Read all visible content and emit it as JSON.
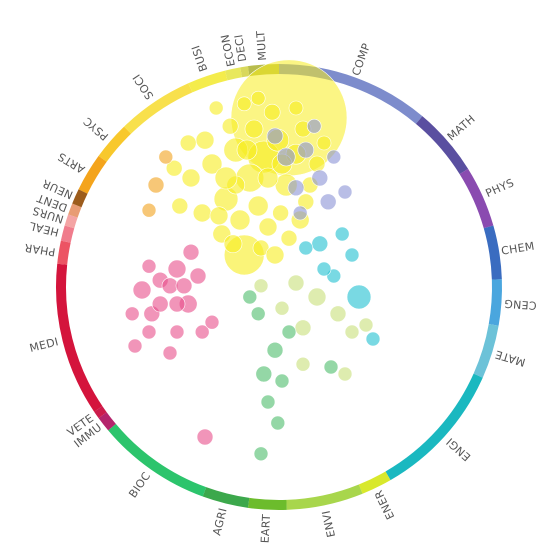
{
  "chart_data": {
    "type": "scatter",
    "title": "",
    "categories": [
      {
        "label": "COMP",
        "color": "#7d8ccc",
        "start": 0,
        "end": 40
      },
      {
        "label": "MATH",
        "color": "#5a4fa0",
        "start": 40,
        "end": 58
      },
      {
        "label": "PHYS",
        "color": "#8a4bb0",
        "start": 58,
        "end": 74
      },
      {
        "label": "CHEM",
        "color": "#3a6cc0",
        "start": 74,
        "end": 88
      },
      {
        "label": "CENG",
        "color": "#4aa6de",
        "start": 88,
        "end": 100
      },
      {
        "label": "MATE",
        "color": "#6cc2d8",
        "start": 100,
        "end": 114
      },
      {
        "label": "ENGI",
        "color": "#1ab8c0",
        "start": 114,
        "end": 150
      },
      {
        "label": "ENER",
        "color": "#d8e82c",
        "start": 150,
        "end": 158
      },
      {
        "label": "ENVI",
        "color": "#a8d64c",
        "start": 158,
        "end": 178
      },
      {
        "label": "EART",
        "color": "#6cbc2c",
        "start": 178,
        "end": 188
      },
      {
        "label": "AGRI",
        "color": "#3ca84c",
        "start": 188,
        "end": 200
      },
      {
        "label": "BIOC",
        "color": "#2cc46c",
        "start": 200,
        "end": 230
      },
      {
        "label": "IMMU",
        "color": "#b4246c",
        "start": 230,
        "end": 234
      },
      {
        "label": "VETE",
        "color": "#cc1c4c",
        "start": 234,
        "end": 236
      },
      {
        "label": "MEDI",
        "color": "#d4143c",
        "start": 236,
        "end": 276
      },
      {
        "label": "PHAR",
        "color": "#ec5464",
        "start": 276,
        "end": 282
      },
      {
        "label": "HEAL",
        "color": "#f07c8c",
        "start": 282,
        "end": 286
      },
      {
        "label": "NURS",
        "color": "#f4a4a4",
        "start": 286,
        "end": 289
      },
      {
        "label": "DENT",
        "color": "#e89c74",
        "start": 289,
        "end": 292
      },
      {
        "label": "NEUR",
        "color": "#9c5c1c",
        "start": 292,
        "end": 296
      },
      {
        "label": "ARTS",
        "color": "#f4a41c",
        "start": 296,
        "end": 306
      },
      {
        "label": "PSYC",
        "color": "#f8c82c",
        "start": 306,
        "end": 316
      },
      {
        "label": "SOCI",
        "color": "#f8e04c",
        "start": 316,
        "end": 336
      },
      {
        "label": "BUSI",
        "color": "#f4ec4c",
        "start": 336,
        "end": 346
      },
      {
        "label": "ECON",
        "color": "#e8e85c",
        "start": 346,
        "end": 350
      },
      {
        "label": "DECI",
        "color": "#d8d85c",
        "start": 350,
        "end": 352
      },
      {
        "label": "MULT",
        "color": "#b8bc4c",
        "start": 352,
        "end": 360
      }
    ],
    "point_colors": {
      "soc": "#f7ec1f",
      "pink": "#e84e8a",
      "blue": "#8a93d6",
      "cyan": "#20c0d0",
      "lgreen": "#c8e07a",
      "green": "#4cbc6a",
      "orange": "#f2a21d"
    },
    "points": [
      {
        "group": "soc",
        "x": 0.18,
        "y": 0.2,
        "r": 20
      },
      {
        "group": "soc",
        "x": 0.5,
        "y": -0.78,
        "r": 58
      },
      {
        "group": "soc",
        "x": 0.32,
        "y": -0.5,
        "r": 16
      },
      {
        "group": "soc",
        "x": 0.22,
        "y": -0.35,
        "r": 14
      },
      {
        "group": "soc",
        "x": 0.12,
        "y": -0.55,
        "r": 12
      },
      {
        "group": "soc",
        "x": 0.05,
        "y": -0.2,
        "r": 12
      },
      {
        "group": "soc",
        "x": 0.15,
        "y": -0.05,
        "r": 10
      },
      {
        "group": "soc",
        "x": 0.02,
        "y": 0.05,
        "r": 9
      },
      {
        "group": "soc",
        "x": -0.05,
        "y": -0.45,
        "r": 10
      },
      {
        "group": "soc",
        "x": 0.42,
        "y": -0.62,
        "r": 11
      },
      {
        "group": "soc",
        "x": 0.48,
        "y": -0.3,
        "r": 11
      },
      {
        "group": "soc",
        "x": 0.55,
        "y": -0.52,
        "r": 10
      },
      {
        "group": "soc",
        "x": 0.28,
        "y": -0.15,
        "r": 10
      },
      {
        "group": "soc",
        "x": 0.35,
        "y": 0.0,
        "r": 9
      },
      {
        "group": "soc",
        "x": -0.12,
        "y": -0.1,
        "r": 9
      },
      {
        "group": "soc",
        "x": -0.2,
        "y": -0.35,
        "r": 9
      },
      {
        "group": "soc",
        "x": -0.1,
        "y": -0.62,
        "r": 9
      },
      {
        "group": "soc",
        "x": 0.25,
        "y": -0.7,
        "r": 9
      },
      {
        "group": "soc",
        "x": 0.6,
        "y": -0.7,
        "r": 8
      },
      {
        "group": "soc",
        "x": 0.44,
        "y": -0.1,
        "r": 8
      },
      {
        "group": "soc",
        "x": 0.08,
        "y": -0.72,
        "r": 8
      },
      {
        "group": "soc",
        "x": -0.28,
        "y": -0.15,
        "r": 8
      },
      {
        "group": "soc",
        "x": -0.32,
        "y": -0.42,
        "r": 8
      },
      {
        "group": "soc",
        "x": 0.38,
        "y": -0.82,
        "r": 8
      },
      {
        "group": "soc",
        "x": 0.18,
        "y": -0.88,
        "r": 7
      },
      {
        "group": "soc",
        "x": 0.62,
        "y": -0.18,
        "r": 8
      },
      {
        "group": "soc",
        "x": 0.5,
        "y": 0.08,
        "r": 8
      },
      {
        "group": "soc",
        "x": 0.3,
        "y": 0.15,
        "r": 8
      },
      {
        "group": "soc",
        "x": 0.4,
        "y": 0.2,
        "r": 9
      },
      {
        "group": "soc",
        "x": -0.02,
        "y": -0.85,
        "r": 7
      },
      {
        "group": "soc",
        "x": 0.7,
        "y": -0.45,
        "r": 8
      },
      {
        "group": "soc",
        "x": 0.12,
        "y": -0.3,
        "r": 9
      },
      {
        "group": "soc",
        "x": 0.2,
        "y": -0.55,
        "r": 10
      },
      {
        "group": "soc",
        "x": 0.05,
        "y": -0.35,
        "r": 11
      },
      {
        "group": "soc",
        "x": 0.58,
        "y": -0.05,
        "r": 9
      },
      {
        "group": "soc",
        "x": 0.65,
        "y": -0.3,
        "r": 8
      },
      {
        "group": "soc",
        "x": 0.28,
        "y": -0.92,
        "r": 7
      },
      {
        "group": "soc",
        "x": 0.75,
        "y": -0.6,
        "r": 7
      },
      {
        "group": "soc",
        "x": -0.22,
        "y": -0.6,
        "r": 8
      },
      {
        "group": "soc",
        "x": 0.35,
        "y": -0.35,
        "r": 10
      },
      {
        "group": "soc",
        "x": 0.45,
        "y": -0.45,
        "r": 10
      },
      {
        "group": "soc",
        "x": 0.55,
        "y": -0.85,
        "r": 7
      },
      {
        "group": "soc",
        "x": 0.1,
        "y": 0.12,
        "r": 9
      },
      {
        "group": "soc",
        "x": 0.0,
        "y": -0.08,
        "r": 9
      },
      {
        "group": "orange",
        "x": -0.45,
        "y": -0.3,
        "r": 8
      },
      {
        "group": "orange",
        "x": -0.38,
        "y": -0.5,
        "r": 7
      },
      {
        "group": "orange",
        "x": -0.5,
        "y": -0.12,
        "r": 7
      },
      {
        "group": "pink",
        "x": -0.55,
        "y": 0.45,
        "r": 9
      },
      {
        "group": "pink",
        "x": -0.48,
        "y": 0.62,
        "r": 8
      },
      {
        "group": "pink",
        "x": -0.3,
        "y": 0.3,
        "r": 9
      },
      {
        "group": "pink",
        "x": -0.22,
        "y": 0.55,
        "r": 9
      },
      {
        "group": "pink",
        "x": -0.3,
        "y": 0.55,
        "r": 8
      },
      {
        "group": "pink",
        "x": -0.42,
        "y": 0.38,
        "r": 8
      },
      {
        "group": "pink",
        "x": -0.15,
        "y": 0.35,
        "r": 8
      },
      {
        "group": "pink",
        "x": -0.5,
        "y": 0.28,
        "r": 7
      },
      {
        "group": "pink",
        "x": -0.35,
        "y": 0.42,
        "r": 8
      },
      {
        "group": "pink",
        "x": -0.42,
        "y": 0.55,
        "r": 8
      },
      {
        "group": "pink",
        "x": -0.2,
        "y": 0.18,
        "r": 8
      },
      {
        "group": "pink",
        "x": -0.35,
        "y": 0.9,
        "r": 7
      },
      {
        "group": "pink",
        "x": -0.6,
        "y": 0.85,
        "r": 7
      },
      {
        "group": "pink",
        "x": -0.12,
        "y": 0.75,
        "r": 7
      },
      {
        "group": "pink",
        "x": -0.62,
        "y": 0.62,
        "r": 7
      },
      {
        "group": "pink",
        "x": -0.3,
        "y": 0.75,
        "r": 7
      },
      {
        "group": "pink",
        "x": -0.5,
        "y": 0.75,
        "r": 7
      },
      {
        "group": "pink",
        "x": -0.25,
        "y": 0.42,
        "r": 8
      },
      {
        "group": "pink",
        "x": -0.05,
        "y": 0.68,
        "r": 7
      },
      {
        "group": "blue",
        "x": 0.48,
        "y": -0.5,
        "r": 9
      },
      {
        "group": "blue",
        "x": 0.62,
        "y": -0.55,
        "r": 8
      },
      {
        "group": "blue",
        "x": 0.72,
        "y": -0.35,
        "r": 8
      },
      {
        "group": "blue",
        "x": 0.55,
        "y": -0.28,
        "r": 8
      },
      {
        "group": "blue",
        "x": 0.82,
        "y": -0.5,
        "r": 7
      },
      {
        "group": "blue",
        "x": 0.4,
        "y": -0.65,
        "r": 8
      },
      {
        "group": "blue",
        "x": 0.68,
        "y": -0.72,
        "r": 7
      },
      {
        "group": "blue",
        "x": 0.9,
        "y": -0.25,
        "r": 7
      },
      {
        "group": "blue",
        "x": 0.78,
        "y": -0.18,
        "r": 8
      },
      {
        "group": "blue",
        "x": 0.58,
        "y": -0.1,
        "r": 7
      },
      {
        "group": "cyan",
        "x": 0.72,
        "y": 0.12,
        "r": 8
      },
      {
        "group": "cyan",
        "x": 0.88,
        "y": 0.05,
        "r": 7
      },
      {
        "group": "cyan",
        "x": 0.82,
        "y": 0.35,
        "r": 7
      },
      {
        "group": "cyan",
        "x": 0.62,
        "y": 0.15,
        "r": 7
      },
      {
        "group": "cyan",
        "x": 0.95,
        "y": 0.2,
        "r": 7
      },
      {
        "group": "cyan",
        "x": 1.0,
        "y": 0.5,
        "r": 12
      },
      {
        "group": "cyan",
        "x": 1.1,
        "y": 0.8,
        "r": 7
      },
      {
        "group": "cyan",
        "x": 0.75,
        "y": 0.3,
        "r": 7
      },
      {
        "group": "lgreen",
        "x": 0.55,
        "y": 0.4,
        "r": 8
      },
      {
        "group": "lgreen",
        "x": 0.7,
        "y": 0.5,
        "r": 9
      },
      {
        "group": "lgreen",
        "x": 0.85,
        "y": 0.62,
        "r": 8
      },
      {
        "group": "lgreen",
        "x": 0.6,
        "y": 0.72,
        "r": 8
      },
      {
        "group": "lgreen",
        "x": 0.95,
        "y": 0.75,
        "r": 7
      },
      {
        "group": "lgreen",
        "x": 0.45,
        "y": 0.58,
        "r": 7
      },
      {
        "group": "lgreen",
        "x": 1.05,
        "y": 0.7,
        "r": 7
      },
      {
        "group": "lgreen",
        "x": 0.9,
        "y": 1.05,
        "r": 7
      },
      {
        "group": "lgreen",
        "x": 0.3,
        "y": 0.42,
        "r": 7
      },
      {
        "group": "lgreen",
        "x": 0.6,
        "y": 0.98,
        "r": 7
      },
      {
        "group": "green",
        "x": 0.4,
        "y": 0.88,
        "r": 8
      },
      {
        "group": "green",
        "x": 0.32,
        "y": 1.05,
        "r": 8
      },
      {
        "group": "green",
        "x": 0.45,
        "y": 1.1,
        "r": 7
      },
      {
        "group": "green",
        "x": 0.35,
        "y": 1.25,
        "r": 7
      },
      {
        "group": "green",
        "x": 0.28,
        "y": 0.62,
        "r": 7
      },
      {
        "group": "green",
        "x": 0.5,
        "y": 0.75,
        "r": 7
      },
      {
        "group": "green",
        "x": 0.42,
        "y": 1.4,
        "r": 7
      },
      {
        "group": "green",
        "x": 0.22,
        "y": 0.5,
        "r": 7
      },
      {
        "group": "green",
        "x": 0.8,
        "y": 1.0,
        "r": 7
      },
      {
        "group": "green",
        "x": 0.3,
        "y": 1.62,
        "r": 7
      },
      {
        "group": "pink",
        "x": -0.1,
        "y": 1.5,
        "r": 8
      }
    ],
    "point_scale": 140
  }
}
